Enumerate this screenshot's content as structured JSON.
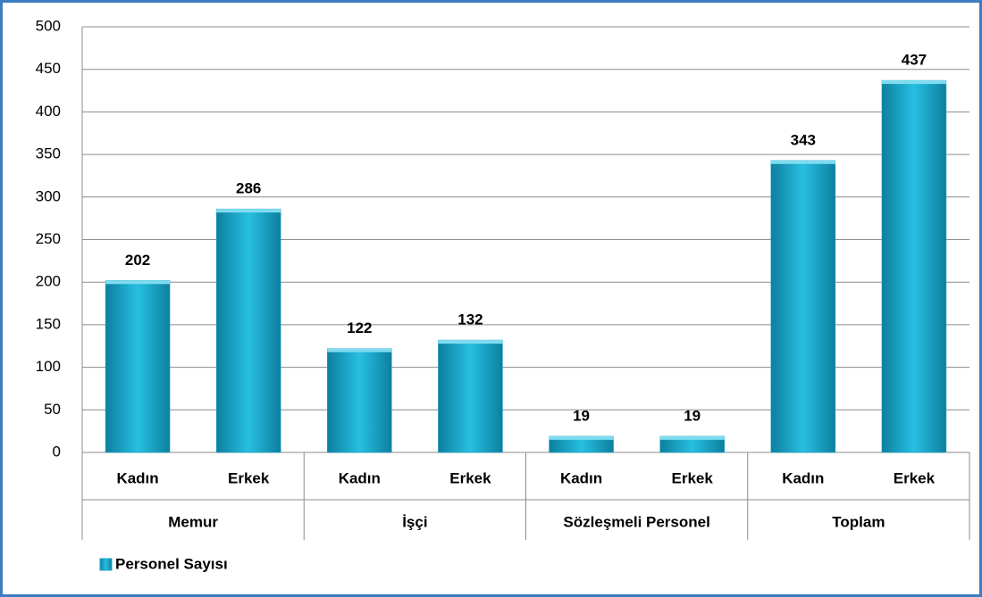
{
  "chart_data": {
    "type": "bar",
    "categories": [
      "Kadın",
      "Erkek",
      "Kadın",
      "Erkek",
      "Kadın",
      "Erkek",
      "Kadın",
      "Erkek"
    ],
    "groups": [
      "Memur",
      "İşçi",
      "Sözleşmeli Personel",
      "Toplam"
    ],
    "series": [
      {
        "name": "Personel Sayısı",
        "color": "#1ba3c6",
        "values": [
          202,
          286,
          122,
          132,
          19,
          19,
          343,
          437
        ]
      }
    ],
    "ylim": [
      0,
      500
    ],
    "yticks": [
      0,
      50,
      100,
      150,
      200,
      250,
      300,
      350,
      400,
      450,
      500
    ],
    "grid": true,
    "legend": "bottom-left",
    "data_labels": true
  }
}
